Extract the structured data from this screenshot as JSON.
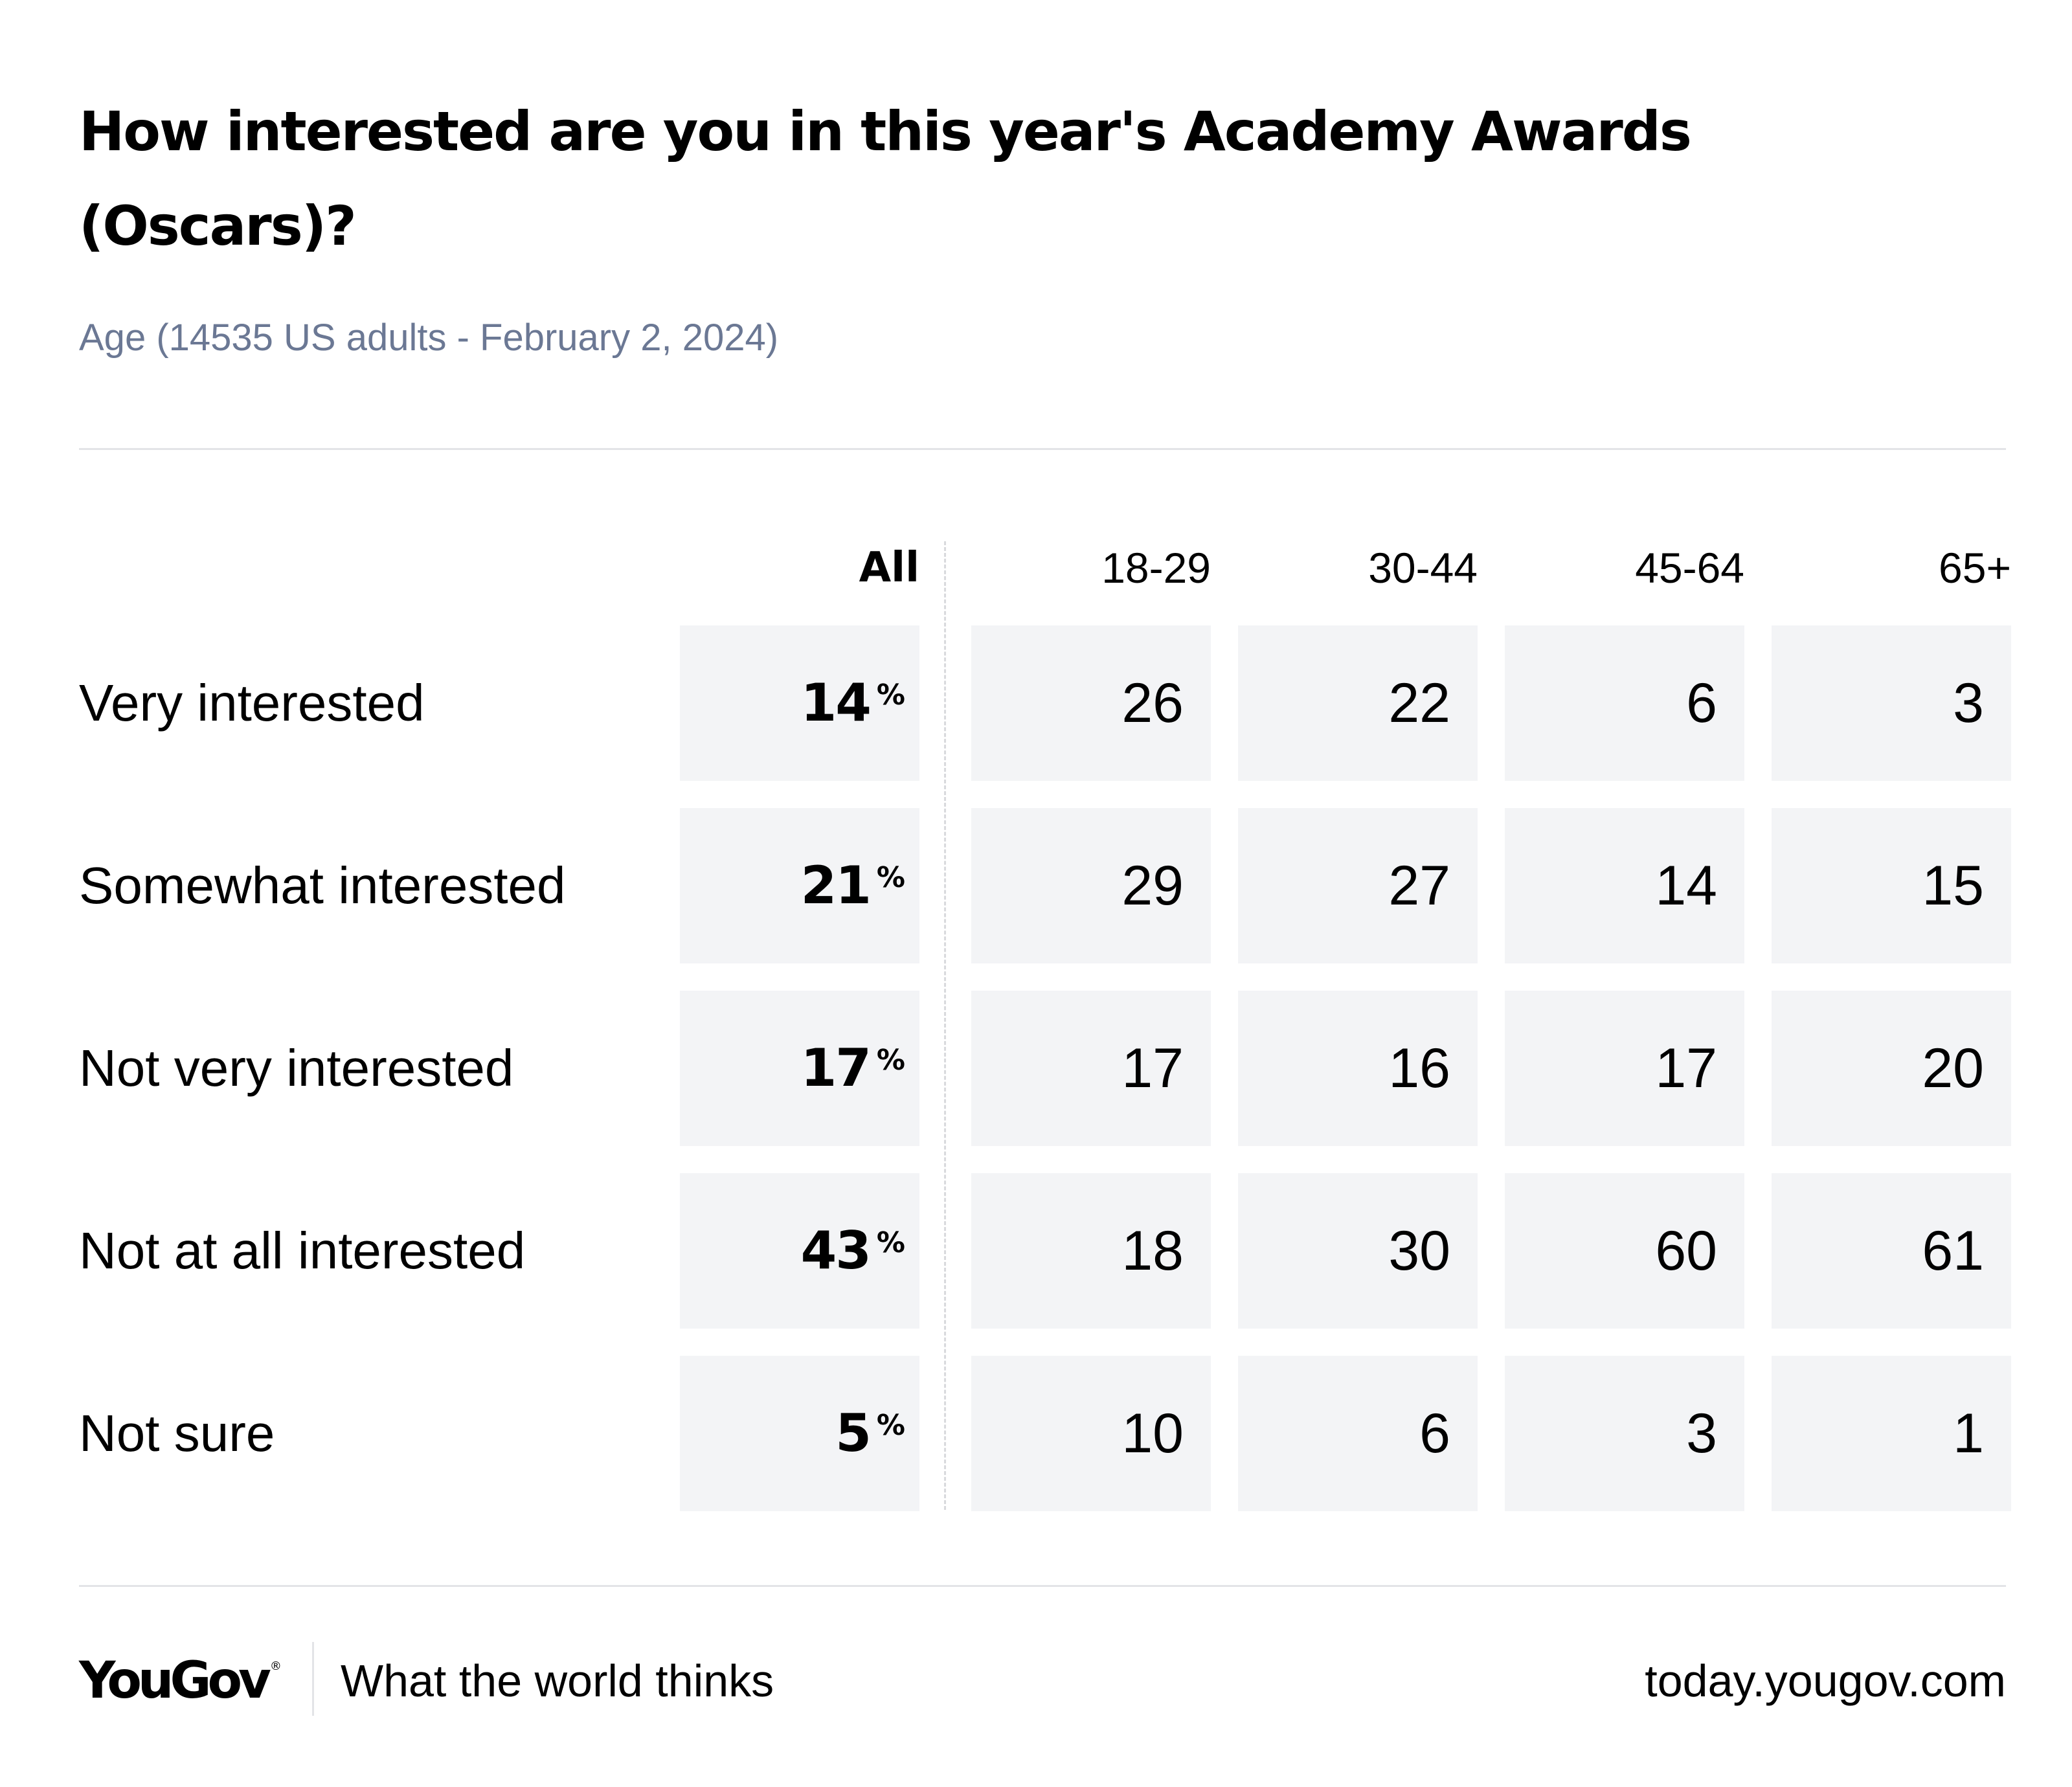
{
  "chart_data": {
    "type": "table",
    "title": "How interested are you in this year's Academy Awards (Oscars)?",
    "subtitle": "Age (14535 US adults - February 2, 2024)",
    "columns": [
      "All",
      "18-29",
      "30-44",
      "45-64",
      "65+"
    ],
    "percent_symbol": "%",
    "rows": [
      {
        "label": "Very interested",
        "values": [
          "14",
          "26",
          "22",
          "6",
          "3"
        ]
      },
      {
        "label": "Somewhat interested",
        "values": [
          "21",
          "29",
          "27",
          "14",
          "15"
        ]
      },
      {
        "label": "Not very interested",
        "values": [
          "17",
          "17",
          "16",
          "17",
          "20"
        ]
      },
      {
        "label": "Not at all interested",
        "values": [
          "43",
          "18",
          "30",
          "60",
          "61"
        ]
      },
      {
        "label": "Not sure",
        "values": [
          "5",
          "10",
          "6",
          "3",
          "1"
        ]
      }
    ]
  },
  "footer": {
    "brand": "YouGov",
    "brand_mark": "®",
    "tagline": "What the world thinks",
    "site": "today.yougov.com"
  },
  "colors": {
    "cell_background": "#f3f4f6",
    "subtitle": "#6b7894",
    "rule": "#e3e4e7"
  }
}
